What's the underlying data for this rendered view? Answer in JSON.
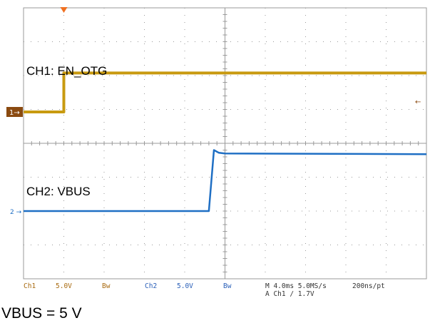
{
  "chart_data": {
    "type": "line",
    "grid": true,
    "divisions": {
      "x": 10,
      "y": 8
    },
    "xlim": [
      -4.0,
      36.0
    ],
    "xunit": "ms",
    "trigger_position_ms": 0.0,
    "series": [
      {
        "name": "EN_OTG",
        "channel": "Ch1",
        "color": "#c89a10",
        "marker_label": "1",
        "scale": "5.0V",
        "x_ms": [
          -4.0,
          -0.05,
          0.0,
          36.0
        ],
        "y_div": [
          1.15,
          1.15,
          2.3,
          2.3
        ]
      },
      {
        "name": "VBUS",
        "channel": "Ch2",
        "color": "#1f6fc4",
        "marker_label": "2",
        "scale": "5.0V",
        "x_ms": [
          -4.0,
          14.4,
          14.9,
          15.4,
          16.0,
          36.0
        ],
        "y_div": [
          0.0,
          0.0,
          1.8,
          1.72,
          1.7,
          1.68
        ]
      }
    ]
  },
  "annotations": {
    "ch1": "CH1: EN_OTG",
    "ch2": "CH2: VBUS",
    "caption": "VBUS = 5 V"
  },
  "status_bar": {
    "ch1_label": "Ch1",
    "ch1_scale": "5.0V",
    "bw1": "Bw",
    "ch2_label": "Ch2",
    "ch2_scale": "5.0V",
    "bw2": "Bw",
    "timebase": "M 4.0ms 5.0MS/s",
    "trigger": "A  Ch1  ∕  1.7V",
    "resolution": "200ns/pt"
  },
  "colors": {
    "graticule": "#9a9a9a",
    "ch1": "#c89a10",
    "ch1_marker": "#8a4a10",
    "ch2": "#1f6fc4",
    "trigger_marker": "#f07020"
  }
}
